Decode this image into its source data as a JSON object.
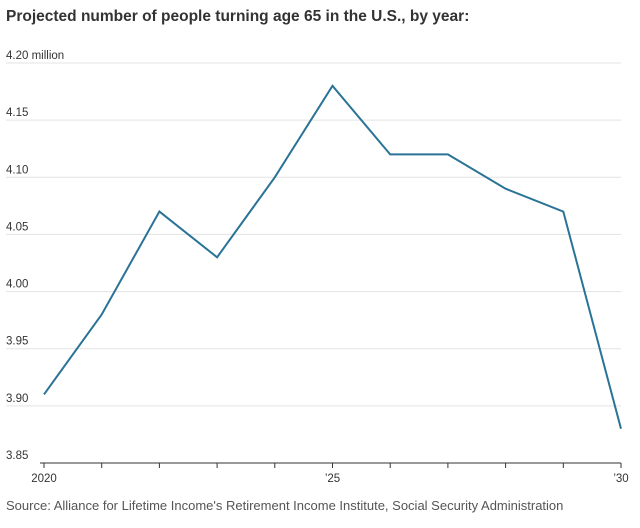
{
  "chart_data": {
    "type": "line",
    "title": "Projected number of people turning age 65 in the U.S., by year:",
    "source": "Source: Alliance for Lifetime Income's Retirement Income Institute, Social Security Administration",
    "xlabel": "",
    "ylabel": "",
    "x": [
      2020,
      2021,
      2022,
      2023,
      2024,
      2025,
      2026,
      2027,
      2028,
      2029,
      2030
    ],
    "series": [
      {
        "values": [
          3.91,
          3.98,
          4.07,
          4.03,
          4.1,
          4.18,
          4.12,
          4.12,
          4.09,
          4.07,
          3.88
        ]
      }
    ],
    "xlim": [
      2020,
      2030
    ],
    "ylim": [
      3.85,
      4.2
    ],
    "x_tick_labels": [
      {
        "value": 2020,
        "label": "2020"
      },
      {
        "value": 2025,
        "label": "’25"
      },
      {
        "value": 2030,
        "label": "’30"
      }
    ],
    "y_ticks": [
      {
        "value": 4.2,
        "label": "4.20 million"
      },
      {
        "value": 4.15,
        "label": "4.15"
      },
      {
        "value": 4.1,
        "label": "4.10"
      },
      {
        "value": 4.05,
        "label": "4.05"
      },
      {
        "value": 4.0,
        "label": "4.00"
      },
      {
        "value": 3.95,
        "label": "3.95"
      },
      {
        "value": 3.9,
        "label": "3.90"
      },
      {
        "value": 3.85,
        "label": "3.85"
      }
    ],
    "grid": true,
    "line_color": "#2a7396",
    "grid_color": "#e3e3e3",
    "axis_color": "#333333"
  }
}
